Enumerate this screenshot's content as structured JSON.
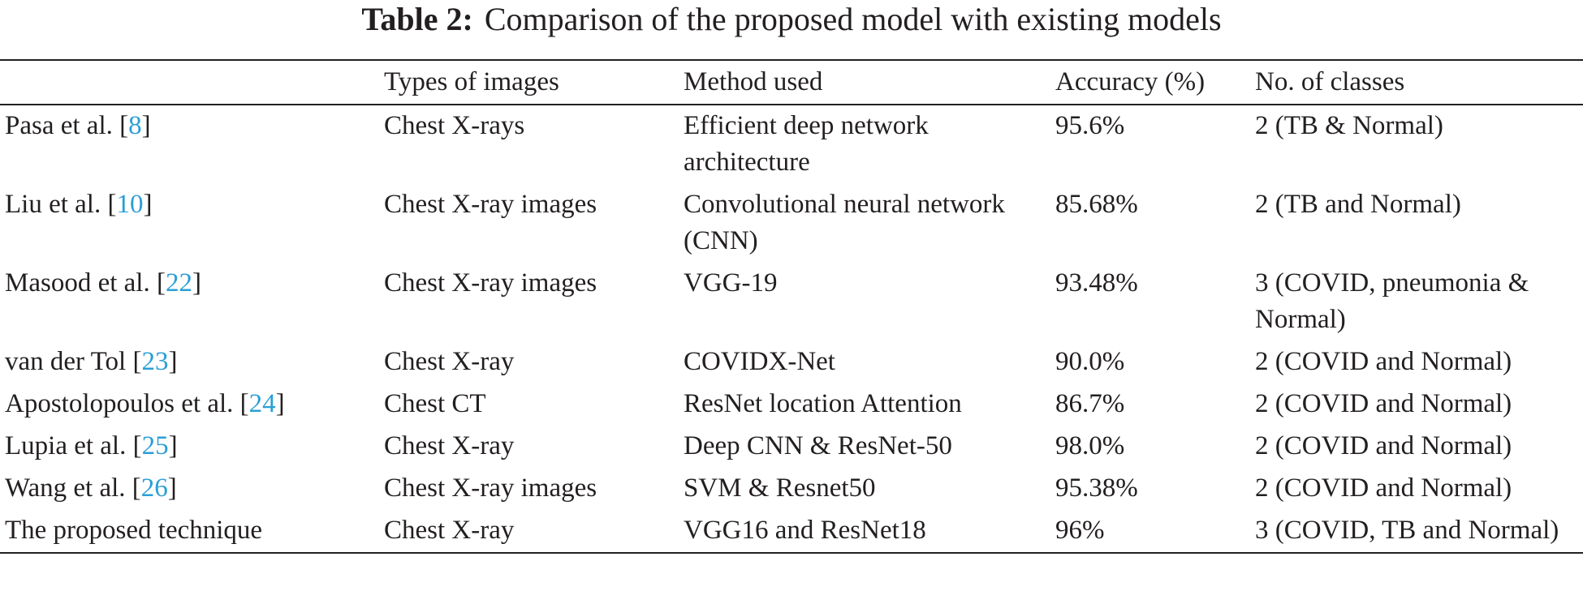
{
  "caption": {
    "label": "Table 2:",
    "title": "Comparison of the proposed model with existing models"
  },
  "citation_brackets": [
    "[",
    "]"
  ],
  "table": {
    "headers": [
      "",
      "Types of images",
      "Method used",
      "Accuracy (%)",
      "No. of classes"
    ],
    "rows": [
      {
        "study": {
          "text": "Pasa et al.",
          "ref": "8"
        },
        "cells": [
          "Chest X-rays",
          "Efficient deep network architecture",
          "95.6%",
          "2 (TB & Normal)"
        ]
      },
      {
        "study": {
          "text": "Liu et al.",
          "ref": "10"
        },
        "cells": [
          "Chest X-ray images",
          "Convolutional neural network (CNN)",
          "85.68%",
          "2 (TB and Normal)"
        ]
      },
      {
        "study": {
          "text": "Masood et al.",
          "ref": "22"
        },
        "cells": [
          "Chest X-ray images",
          "VGG-19",
          "93.48%",
          "3 (COVID, pneumonia & Normal)"
        ]
      },
      {
        "study": {
          "text": "van der Tol",
          "ref": "23"
        },
        "cells": [
          "Chest X-ray",
          "COVIDX-Net",
          "90.0%",
          "2 (COVID and Normal)"
        ]
      },
      {
        "study": {
          "text": "Apostolopoulos et al.",
          "ref": "24"
        },
        "cells": [
          "Chest CT",
          "ResNet location Attention",
          "86.7%",
          "2 (COVID and Normal)"
        ]
      },
      {
        "study": {
          "text": "Lupia et al.",
          "ref": "25"
        },
        "cells": [
          "Chest X-ray",
          "Deep CNN & ResNet-50",
          "98.0%",
          "2 (COVID and Normal)"
        ]
      },
      {
        "study": {
          "text": "Wang et al.",
          "ref": "26"
        },
        "cells": [
          "Chest X-ray images",
          "SVM & Resnet50",
          "95.38%",
          "2 (COVID and Normal)"
        ]
      },
      {
        "study": {
          "text": "The proposed technique",
          "ref": null
        },
        "cells": [
          "Chest X-ray",
          "VGG16 and ResNet18",
          "96%",
          "3 (COVID, TB and Normal)"
        ]
      }
    ]
  }
}
